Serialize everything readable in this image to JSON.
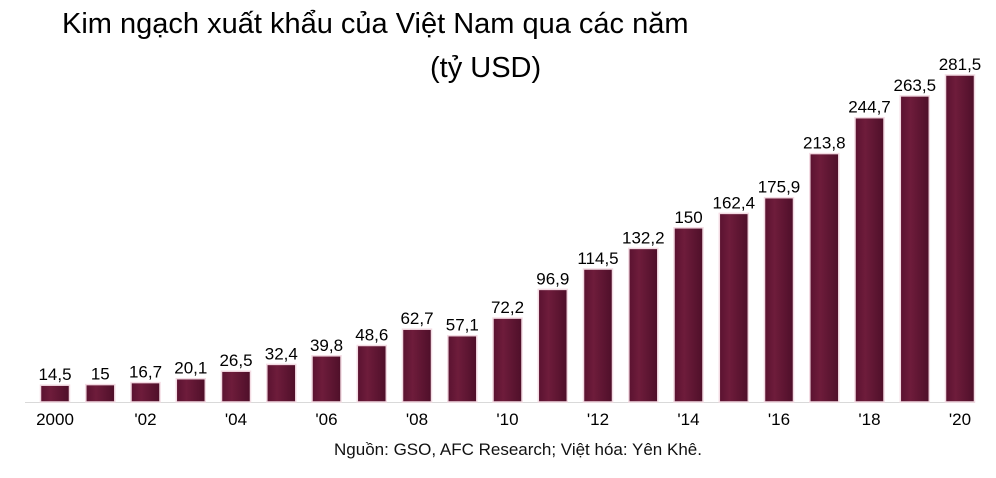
{
  "chart_data": {
    "type": "bar",
    "title_lines": [
      "Kim ngạch xuất khẩu của Việt Nam qua các năm",
      "(tỷ USD)"
    ],
    "categories": [
      "2000",
      "2001",
      "2002",
      "2003",
      "2004",
      "2005",
      "2006",
      "2007",
      "2008",
      "2009",
      "2010",
      "2011",
      "2012",
      "2013",
      "2014",
      "2015",
      "2016",
      "2017",
      "2018",
      "2019",
      "2020"
    ],
    "tick_labels": [
      "2000",
      "",
      "'02",
      "",
      "'04",
      "",
      "'06",
      "",
      "'08",
      "",
      "'10",
      "",
      "'12",
      "",
      "'14",
      "",
      "'16",
      "",
      "'18",
      "",
      "'20"
    ],
    "values": [
      14.5,
      15,
      16.7,
      20.1,
      26.5,
      32.4,
      39.8,
      48.6,
      62.7,
      57.1,
      72.2,
      96.9,
      114.5,
      132.2,
      150,
      162.4,
      175.9,
      213.8,
      244.7,
      263.5,
      281.5
    ],
    "value_labels": [
      "14,5",
      "15",
      "16,7",
      "20,1",
      "26,5",
      "32,4",
      "39,8",
      "48,6",
      "62,7",
      "57,1",
      "72,2",
      "96,9",
      "114,5",
      "132,2",
      "150",
      "162,4",
      "175,9",
      "213,8",
      "244,7",
      "263,5",
      "281,5"
    ],
    "ylim": [
      0,
      281.5
    ],
    "grid": false,
    "bar_color": "#6e1c3b",
    "bar_edge_color": "#f3dbe3"
  },
  "source_note": "Nguồn: GSO, AFC Research; Việt hóa: Yên Khê."
}
